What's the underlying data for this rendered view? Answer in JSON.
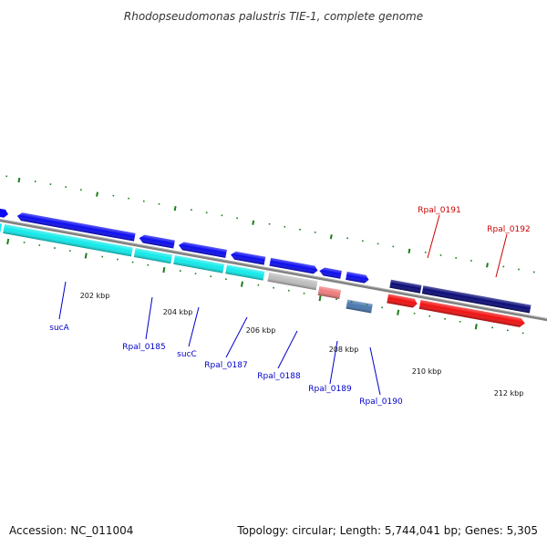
{
  "title": "Rhodopseudomonas palustris TIE-1, complete genome",
  "footer": {
    "accession": "Accession: NC_011004",
    "summary": "Topology: circular; Length: 5,744,041 bp; Genes: 5,305"
  },
  "scale_labels": [
    "202 kbp",
    "204 kbp",
    "206 kbp",
    "208 kbp",
    "210 kbp",
    "212 kbp"
  ],
  "colors": {
    "backbone": "#808080",
    "ticks": "#1a7f1a",
    "label_blue": "#0000cc",
    "label_red": "#cc0000",
    "gene_blue": "#0b0bf0",
    "gene_cyan": "#11eaea",
    "gene_navy": "#0a0a78",
    "gene_red": "#f01010",
    "gene_gray": "#bdbdbd",
    "gene_pink": "#ef7b7b",
    "gene_steel": "#4a78b0"
  },
  "genes": {
    "sucA": "sucA",
    "rpal0185": "Rpal_0185",
    "sucC": "sucC",
    "rpal0187": "Rpal_0187",
    "rpal0188": "Rpal_0188",
    "rpal0189": "Rpal_0189",
    "rpal0190": "Rpal_0190",
    "rpal0191": "Rpal_0191",
    "rpal0192": "Rpal_0192"
  }
}
